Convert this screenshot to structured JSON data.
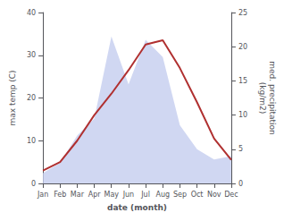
{
  "chart_data": {
    "type": "line",
    "xlabel": "date (month)",
    "ylabel": "max temp (C)",
    "y2label": "med. precipitation\n(kg/m2)",
    "categories": [
      "Jan",
      "Feb",
      "Mar",
      "Apr",
      "May",
      "Jun",
      "Jul",
      "Aug",
      "Sep",
      "Oct",
      "Nov",
      "Dec"
    ],
    "series": [
      {
        "type": "area",
        "axis": "y2",
        "color": "#c8d0f0",
        "values": [
          1.5,
          3.0,
          7.0,
          9.5,
          21.5,
          14.5,
          21.0,
          18.5,
          8.5,
          5.0,
          3.5,
          4.0
        ]
      },
      {
        "type": "line",
        "color": "#b03030",
        "values": [
          3.0,
          5.0,
          10.0,
          16.0,
          21.0,
          26.5,
          32.5,
          33.5,
          27.0,
          19.0,
          10.5,
          5.5
        ]
      }
    ],
    "ylim": [
      0,
      40
    ],
    "yticks": [
      0,
      10,
      20,
      30,
      40
    ],
    "y2lim": [
      0,
      25
    ],
    "y2ticks": [
      0,
      5,
      10,
      15,
      20,
      25
    ],
    "grid": false
  }
}
